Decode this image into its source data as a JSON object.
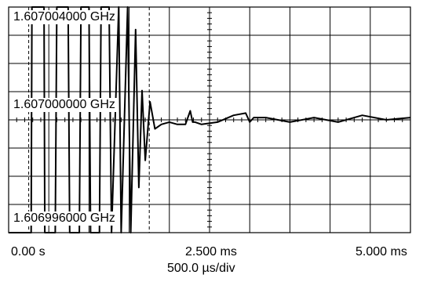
{
  "chart_data": {
    "type": "line",
    "y_labels": [
      "1.607004000 GHz",
      "1.607000000 GHz",
      "1.606996000 GHz"
    ],
    "x_labels": [
      "0.00 s",
      "2.500 ms",
      "5.000 ms"
    ],
    "x_scale_label": "500.0 µs/div",
    "x_range_ms": [
      0,
      5
    ],
    "y_range_ghz": [
      1.606995,
      1.607005
    ],
    "divisions": {
      "x": 10,
      "y": 8
    },
    "grid": true,
    "settling_markers_ms": [
      0.25,
      1.75
    ],
    "series": [
      {
        "x": [
          0,
          0.28,
          0.29,
          0.44,
          0.45,
          0.58,
          0.6,
          0.74,
          0.76,
          0.88,
          0.9,
          1.0,
          1.02,
          1.13,
          1.15,
          1.25,
          1.28,
          1.37,
          1.4,
          1.48,
          1.52,
          1.58,
          1.62,
          1.66,
          1.7,
          1.76,
          1.82,
          1.9,
          2.0,
          2.1,
          2.2,
          2.26,
          2.29,
          2.32,
          2.4,
          2.6,
          2.8,
          2.95,
          3.0,
          3.05,
          3.2,
          3.5,
          3.8,
          4.1,
          4.4,
          4.7,
          5.0
        ],
        "y": [
          1.606994,
          1.606994,
          1.607006,
          1.607006,
          1.606994,
          1.606994,
          1.607006,
          1.607006,
          1.606994,
          1.606994,
          1.607006,
          1.607006,
          1.606995,
          1.606995,
          1.607006,
          1.607006,
          1.606994,
          1.607005,
          1.606994,
          1.607005,
          1.606994,
          1.607004,
          1.606997,
          1.6070013,
          1.6069982,
          1.6070008,
          1.6069996,
          1.6069998,
          1.6069999,
          1.6069998,
          1.6069998,
          1.6070004,
          1.6069999,
          1.6069999,
          1.6069998,
          1.6069999,
          1.6070002,
          1.6070003,
          1.6069999,
          1.6070001,
          1.6070001,
          1.6069999,
          1.6070001,
          1.6069999,
          1.6070002,
          1.607,
          1.6070001
        ]
      }
    ]
  }
}
